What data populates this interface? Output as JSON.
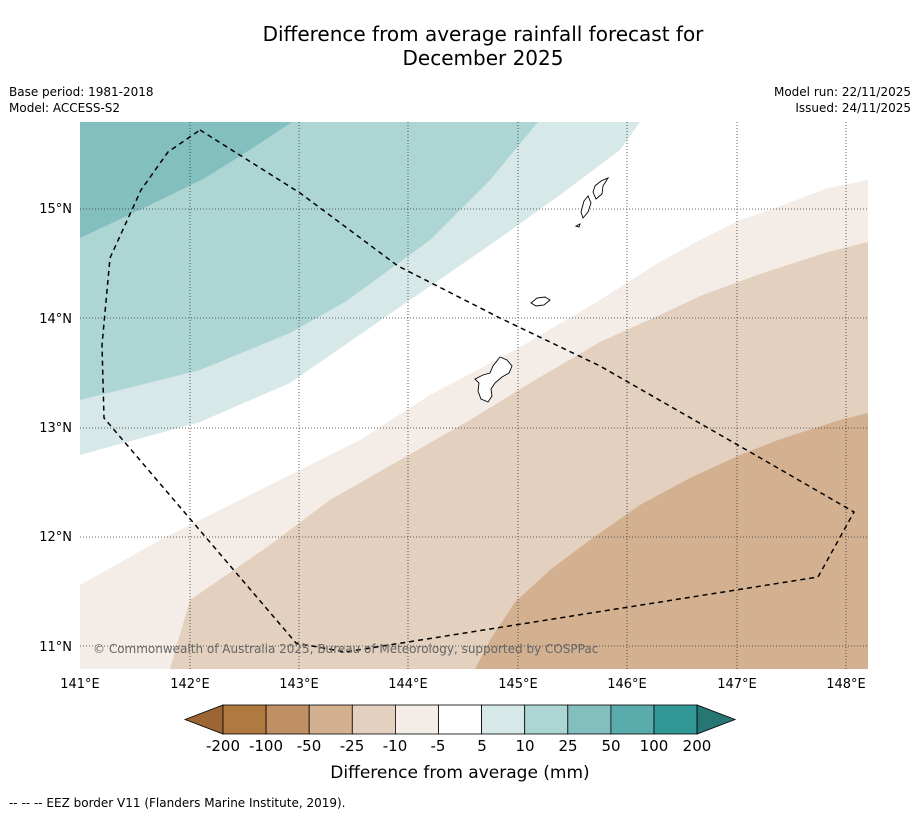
{
  "title": {
    "line1": "Difference from average rainfall forecast for",
    "line2": "December 2025"
  },
  "meta": {
    "base_period": "Base period: 1981-2018",
    "model": "Model: ACCESS-S2",
    "model_run": "Model run: 22/11/2025",
    "issued": "Issued: 24/11/2025"
  },
  "map": {
    "lon_ticks": [
      "141°E",
      "142°E",
      "143°E",
      "144°E",
      "145°E",
      "146°E",
      "147°E",
      "148°E"
    ],
    "lat_ticks": [
      "15°N",
      "14°N",
      "13°N",
      "12°N",
      "11°N"
    ],
    "lon_range": [
      141,
      148.2
    ],
    "lat_range": [
      10.8,
      15.8
    ],
    "copyright": "© Commonwealth of Australia 2025, Bureau of Meteorology, supported by COSPPac",
    "islands": [
      "Guam",
      "Rota",
      "Aguijan",
      "Tinian",
      "Saipan"
    ]
  },
  "legend": {
    "tick_labels": [
      "-200",
      "-100",
      "-50",
      "-25",
      "-10",
      "-5",
      "5",
      "10",
      "25",
      "50",
      "100",
      "200"
    ],
    "colors": [
      "#9c6535",
      "#b0793f",
      "#c09064",
      "#d2b090",
      "#e3d0be",
      "#f4ece7",
      "#ffffff",
      "#d6e9e8",
      "#acd5d4",
      "#83bfbf",
      "#59abac",
      "#329797",
      "#267674"
    ],
    "label": "Difference from average (mm)"
  },
  "footnote": "--  --  -- EEZ border V11 (Flanders Marine Institute, 2019)."
}
